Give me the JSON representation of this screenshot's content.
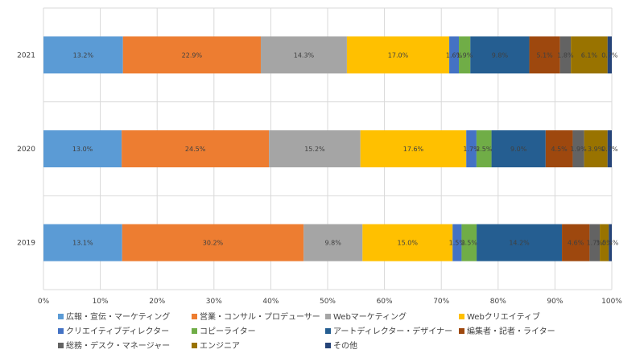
{
  "chart_data": {
    "type": "bar",
    "orientation": "horizontal",
    "stacked": "percent",
    "categories": [
      "2021",
      "2020",
      "2019"
    ],
    "xlim": [
      0,
      100
    ],
    "x_ticks": [
      "0%",
      "10%",
      "20%",
      "30%",
      "40%",
      "50%",
      "60%",
      "70%",
      "80%",
      "90%",
      "100%"
    ],
    "grid": true,
    "legend_position": "bottom",
    "series": [
      {
        "name": "広報・宣伝・マーケティング",
        "color": "#5B9BD5",
        "values": [
          13.2,
          13.0,
          13.1
        ],
        "labels": [
          "13.2%",
          "13.0%",
          "13.1%"
        ]
      },
      {
        "name": "営業・コンサル・プロデューサー",
        "color": "#ED7D31",
        "values": [
          22.9,
          24.5,
          30.2
        ],
        "labels": [
          "22.9%",
          "24.5%",
          "30.2%"
        ]
      },
      {
        "name": "Webマーケティング",
        "color": "#A5A5A5",
        "values": [
          14.3,
          15.2,
          9.8
        ],
        "labels": [
          "14.3%",
          "15.2%",
          "9.8%"
        ]
      },
      {
        "name": "Webクリエイティブ",
        "color": "#FFC000",
        "values": [
          17.0,
          17.6,
          15.0
        ],
        "labels": [
          "17.0%",
          "17.6%",
          "15.0%"
        ]
      },
      {
        "name": "クリエイティブディレクター",
        "color": "#4472C4",
        "values": [
          1.6,
          1.7,
          1.5
        ],
        "labels": [
          "1.6%",
          "1.7%",
          "1.5%"
        ]
      },
      {
        "name": "コピーライター",
        "color": "#70AD47",
        "values": [
          1.9,
          2.5,
          2.5
        ],
        "labels": [
          "1.9%",
          "2.5%",
          "2.5%"
        ]
      },
      {
        "name": "アートディレクター・デザイナー",
        "color": "#255E91",
        "values": [
          9.8,
          9.0,
          14.2
        ],
        "labels": [
          "9.8%",
          "9.0%",
          "14.2%"
        ]
      },
      {
        "name": "編集者・記者・ライター",
        "color": "#9E480E",
        "values": [
          5.1,
          4.5,
          4.6
        ],
        "labels": [
          "5.1%",
          "4.5%",
          "4.6%"
        ]
      },
      {
        "name": "総務・デスク・マネージャー",
        "color": "#636363",
        "values": [
          1.8,
          1.9,
          1.7
        ],
        "labels": [
          "1.8%",
          "1.9%",
          "1.7%"
        ]
      },
      {
        "name": "エンジニア",
        "color": "#997300",
        "values": [
          6.1,
          3.9,
          1.5
        ],
        "labels": [
          "6.1%",
          "3.9%",
          "1.5%"
        ]
      },
      {
        "name": "その他",
        "color": "#264478",
        "values": [
          0.7,
          0.7,
          0.5
        ],
        "labels": [
          "0.7%",
          "0.7%",
          "0.5%"
        ]
      }
    ]
  }
}
